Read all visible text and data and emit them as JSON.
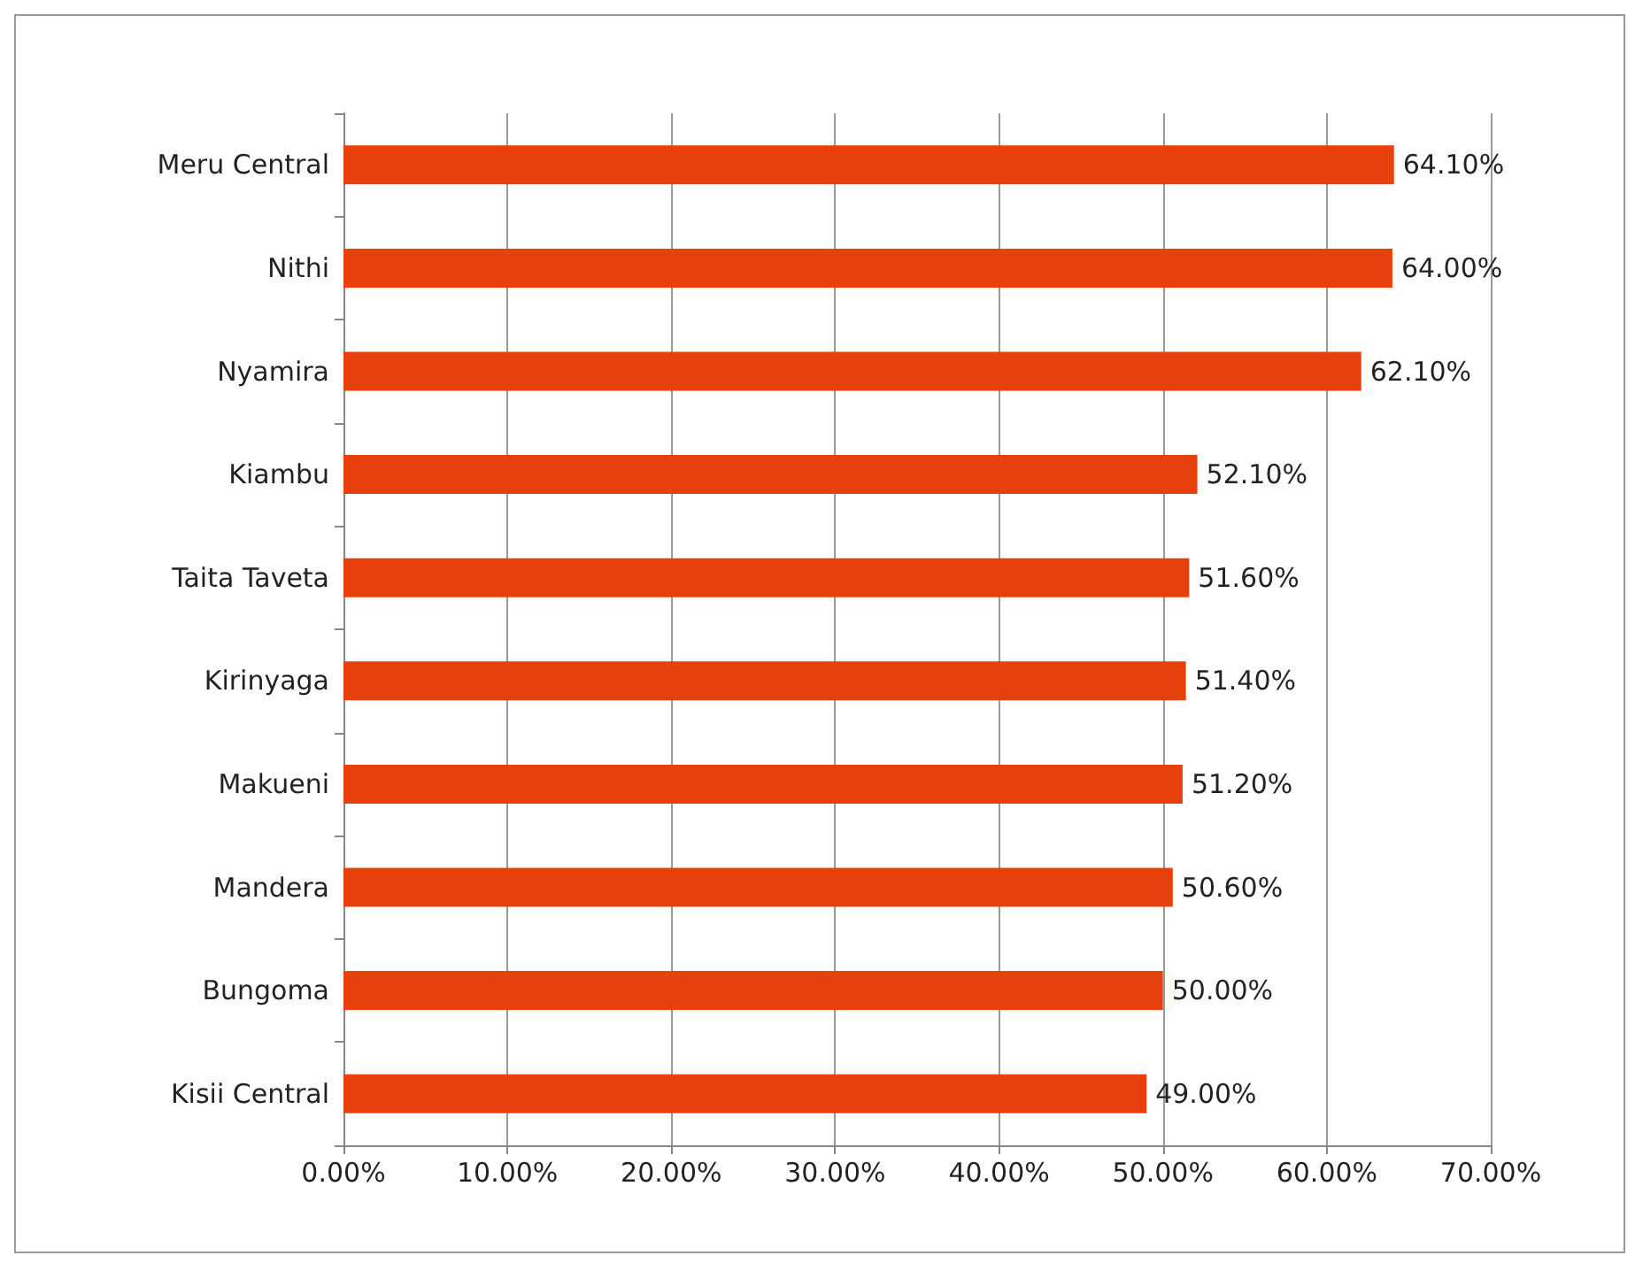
{
  "chart_data": {
    "type": "bar",
    "orientation": "horizontal",
    "categories": [
      "Meru Central",
      "Nithi",
      "Nyamira",
      "Kiambu",
      "Taita Taveta",
      "Kirinyaga",
      "Makueni",
      "Mandera",
      "Bungoma",
      "Kisii Central"
    ],
    "values": [
      64.1,
      64.0,
      62.1,
      52.1,
      51.6,
      51.4,
      51.2,
      50.6,
      50.0,
      49.0
    ],
    "value_labels": [
      "64.10%",
      "64.00%",
      "62.10%",
      "52.10%",
      "51.60%",
      "51.40%",
      "51.20%",
      "50.60%",
      "50.00%",
      "49.00%"
    ],
    "color": "#e8400c",
    "xlim": [
      0,
      70
    ],
    "xticks": [
      {
        "value": 0,
        "label": "0.00%"
      },
      {
        "value": 10,
        "label": "10.00%"
      },
      {
        "value": 20,
        "label": "20.00%"
      },
      {
        "value": 30,
        "label": "30.00%"
      },
      {
        "value": 40,
        "label": "40.00%"
      },
      {
        "value": 50,
        "label": "50.00%"
      },
      {
        "value": 60,
        "label": "60.00%"
      },
      {
        "value": 70,
        "label": "70.00%"
      }
    ],
    "grid": "x"
  }
}
